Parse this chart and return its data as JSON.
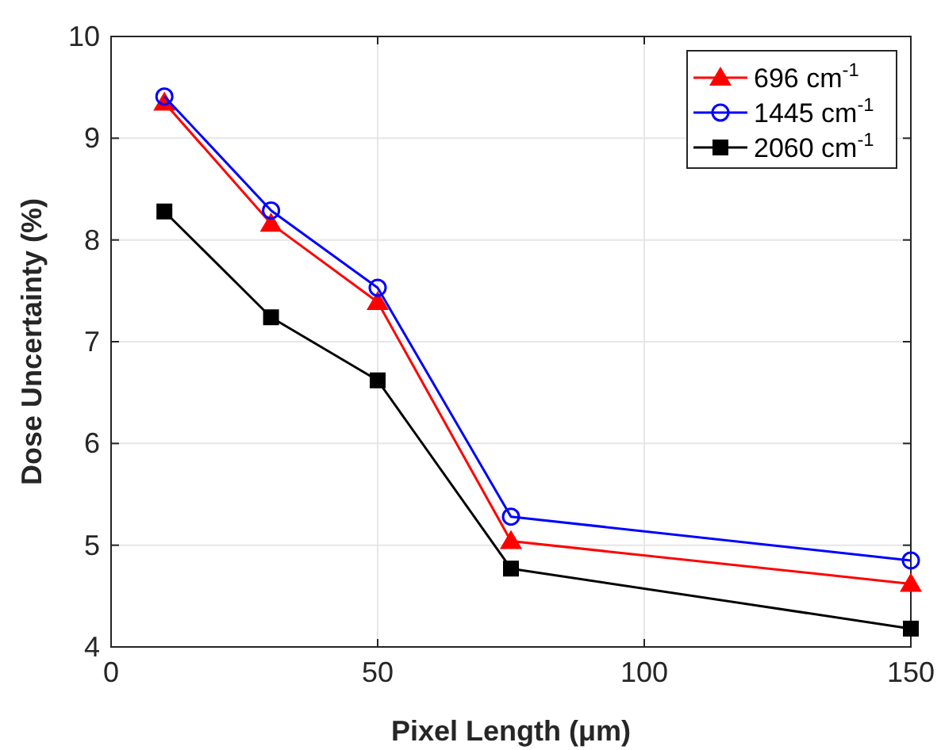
{
  "chart_data": {
    "type": "line",
    "xlabel": "Pixel Length (μm)",
    "ylabel": "Dose Uncertainty (%)",
    "x": [
      10,
      30,
      50,
      75,
      150
    ],
    "series": [
      {
        "name": "696 cm$^{-1}$",
        "color": "#ff0000",
        "marker": "triangle",
        "values": [
          9.35,
          8.16,
          7.39,
          5.04,
          4.62
        ]
      },
      {
        "name": "1445 cm$^{-1}$",
        "color": "#0000ff",
        "marker": "circle",
        "values": [
          9.41,
          8.29,
          7.53,
          5.28,
          4.85
        ]
      },
      {
        "name": "2060 cm$^{-1}$",
        "color": "#000000",
        "marker": "square",
        "values": [
          8.28,
          7.24,
          6.62,
          4.77,
          4.18
        ]
      }
    ],
    "xlim": [
      0,
      150
    ],
    "xticks": [
      0,
      50,
      100,
      150
    ],
    "ylim": [
      4,
      10
    ],
    "yticks": [
      4,
      5,
      6,
      7,
      8,
      9,
      10
    ],
    "grid": true,
    "legend": "top right"
  }
}
